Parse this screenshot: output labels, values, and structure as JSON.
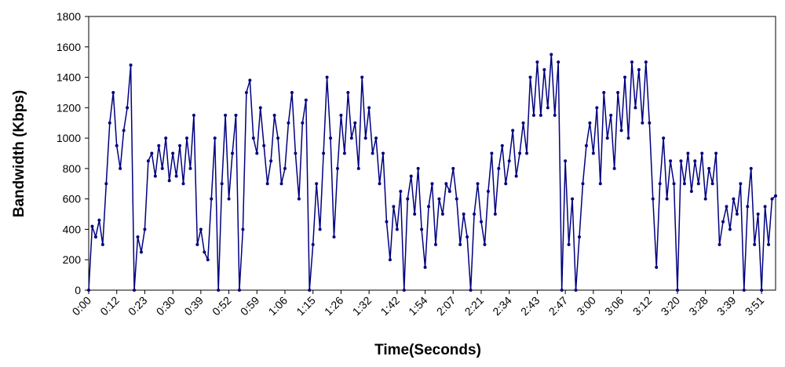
{
  "chart_data": {
    "type": "line",
    "x_label": "Time(Seconds)",
    "y_label": "Bandwidth (Kbps)",
    "categories": [
      "0:00",
      null,
      null,
      null,
      null,
      null,
      null,
      null,
      "0:12",
      null,
      null,
      null,
      null,
      null,
      null,
      null,
      "0:23",
      null,
      null,
      null,
      null,
      null,
      null,
      null,
      "0:30",
      null,
      null,
      null,
      null,
      null,
      null,
      null,
      "0:39",
      null,
      null,
      null,
      null,
      null,
      null,
      null,
      "0:52",
      null,
      null,
      null,
      null,
      null,
      null,
      null,
      "0:59",
      null,
      null,
      null,
      null,
      null,
      null,
      null,
      "1:06",
      null,
      null,
      null,
      null,
      null,
      null,
      null,
      "1:15",
      null,
      null,
      null,
      null,
      null,
      null,
      null,
      "1:26",
      null,
      null,
      null,
      null,
      null,
      null,
      null,
      "1:32",
      null,
      null,
      null,
      null,
      null,
      null,
      null,
      "1:42",
      null,
      null,
      null,
      null,
      null,
      null,
      null,
      "1:54",
      null,
      null,
      null,
      null,
      null,
      null,
      null,
      "2:07",
      null,
      null,
      null,
      null,
      null,
      null,
      null,
      "2:21",
      null,
      null,
      null,
      null,
      null,
      null,
      null,
      "2:34",
      null,
      null,
      null,
      null,
      null,
      null,
      null,
      "2:43",
      null,
      null,
      null,
      null,
      null,
      null,
      null,
      "2:47",
      null,
      null,
      null,
      null,
      null,
      null,
      null,
      "3:00",
      null,
      null,
      null,
      null,
      null,
      null,
      null,
      "3:06",
      null,
      null,
      null,
      null,
      null,
      null,
      null,
      "3:12",
      null,
      null,
      null,
      null,
      null,
      null,
      null,
      "3:20",
      null,
      null,
      null,
      null,
      null,
      null,
      null,
      "3:28",
      null,
      null,
      null,
      null,
      null,
      null,
      null,
      "3:39",
      null,
      null,
      null,
      null,
      null,
      null,
      null,
      "3:51",
      null,
      null,
      null,
      null
    ],
    "series": [
      {
        "color": "#000080",
        "values": [
          0,
          420,
          350,
          460,
          300,
          700,
          1100,
          1300,
          950,
          800,
          1050,
          1200,
          1480,
          0,
          350,
          250,
          400,
          850,
          900,
          750,
          950,
          800,
          1000,
          720,
          900,
          750,
          950,
          700,
          1000,
          800,
          1150,
          300,
          400,
          250,
          200,
          600,
          1000,
          0,
          700,
          1150,
          600,
          900,
          1150,
          0,
          400,
          1300,
          1380,
          1000,
          900,
          1200,
          950,
          700,
          850,
          1150,
          1000,
          700,
          800,
          1100,
          1300,
          900,
          600,
          1100,
          1250,
          0,
          300,
          700,
          400,
          900,
          1400,
          1000,
          350,
          800,
          1150,
          900,
          1300,
          1000,
          1100,
          800,
          1400,
          1000,
          1200,
          900,
          1000,
          700,
          900,
          450,
          200,
          550,
          400,
          650,
          0,
          600,
          750,
          500,
          800,
          400,
          150,
          550,
          700,
          300,
          600,
          500,
          700,
          650,
          800,
          600,
          300,
          500,
          350,
          0,
          500,
          700,
          450,
          300,
          650,
          900,
          500,
          800,
          950,
          700,
          850,
          1050,
          750,
          900,
          1100,
          900,
          1400,
          1150,
          1500,
          1150,
          1450,
          1200,
          1550,
          1150,
          1500,
          0,
          850,
          300,
          600,
          0,
          350,
          700,
          950,
          1100,
          900,
          1200,
          700,
          1300,
          1000,
          1150,
          800,
          1300,
          1050,
          1400,
          1000,
          1500,
          1200,
          1450,
          1100,
          1500,
          1100,
          600,
          150,
          700,
          1000,
          600,
          850,
          700,
          0,
          850,
          700,
          900,
          650,
          850,
          700,
          900,
          600,
          800,
          700,
          900,
          300,
          450,
          550,
          400,
          600,
          500,
          700,
          0,
          550,
          800,
          300,
          500,
          0,
          550,
          300,
          600,
          620
        ]
      }
    ],
    "ylim": [
      0,
      1800
    ],
    "yticks": [
      0,
      200,
      400,
      600,
      800,
      1000,
      1200,
      1400,
      1600,
      1800
    ]
  }
}
